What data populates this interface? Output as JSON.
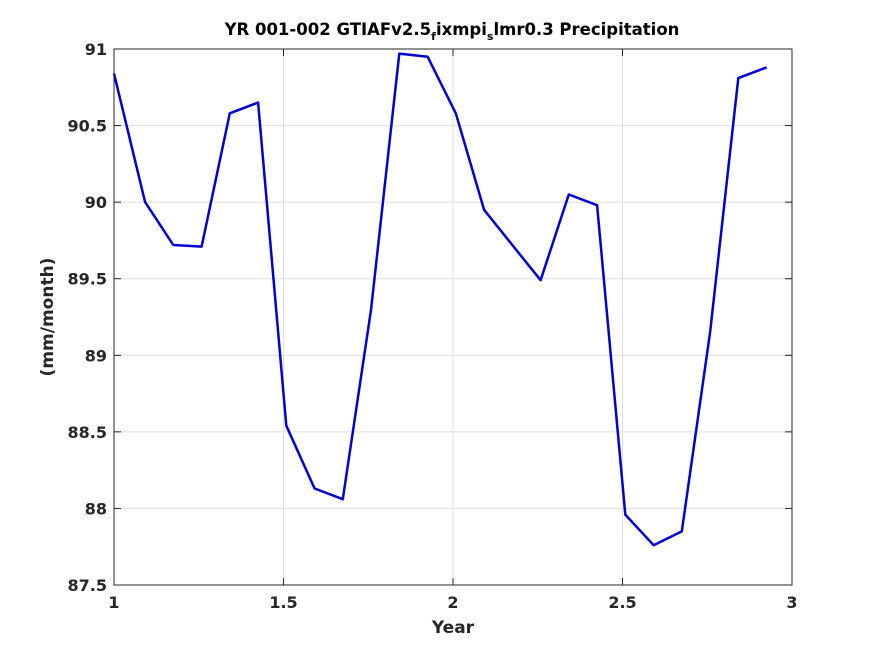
{
  "chart_data": {
    "type": "line",
    "title": {
      "parts": [
        {
          "text": "YR 001-002 GTIAFv2.5",
          "sub": false
        },
        {
          "text": "f",
          "sub": true
        },
        {
          "text": "ixmpi",
          "sub": false
        },
        {
          "text": "s",
          "sub": true
        },
        {
          "text": "lmr0.3 Precipitation",
          "sub": false
        }
      ]
    },
    "xlabel": "Year",
    "ylabel": "(mm/month)",
    "xlim": [
      1,
      3
    ],
    "ylim": [
      87.5,
      91
    ],
    "xticks": [
      1,
      1.5,
      2,
      2.5,
      3
    ],
    "xtick_labels": [
      "1",
      "1.5",
      "2",
      "2.5",
      "3"
    ],
    "yticks": [
      87.5,
      88,
      88.5,
      89,
      89.5,
      90,
      90.5,
      91
    ],
    "ytick_labels": [
      "87.5",
      "88",
      "88.5",
      "89",
      "89.5",
      "90",
      "90.5",
      "91"
    ],
    "grid": true,
    "line_color": "#0000d6",
    "series": [
      {
        "x": [
          1.0,
          1.0917,
          1.175,
          1.2583,
          1.3417,
          1.425,
          1.5083,
          1.5917,
          1.675,
          1.7583,
          1.8417,
          1.925,
          2.0083,
          2.0917,
          2.175,
          2.2583,
          2.3417,
          2.425,
          2.5083,
          2.5917,
          2.675,
          2.7583,
          2.8417,
          2.925
        ],
        "values": [
          90.84,
          90.0,
          89.72,
          89.71,
          90.58,
          90.65,
          88.54,
          88.13,
          88.06,
          89.3,
          90.97,
          90.95,
          90.58,
          89.95,
          89.72,
          89.49,
          90.05,
          89.98,
          87.96,
          87.76,
          87.85,
          89.15,
          90.81,
          90.88
        ]
      }
    ]
  }
}
